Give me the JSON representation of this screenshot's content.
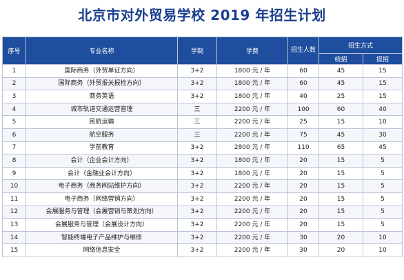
{
  "title": "北京市对外贸易学校 2019 年招生计划",
  "table": {
    "headers": {
      "no": "序号",
      "major": "专业名称",
      "system": "学制",
      "fee": "学费",
      "enroll": "招生人数",
      "method": "招生方式",
      "unified": "统招",
      "early": "提招"
    },
    "rows": [
      {
        "no": "1",
        "major": "国际商务（外贸单证方向）",
        "system": "3+2",
        "fee": "1800 元 / 年",
        "total": "60",
        "unified": "45",
        "early": "15"
      },
      {
        "no": "2",
        "major": "国际商务（外贸报关报检方向）",
        "system": "3+2",
        "fee": "1800 元 / 年",
        "total": "60",
        "unified": "45",
        "early": "15"
      },
      {
        "no": "3",
        "major": "商务英语",
        "system": "3+2",
        "fee": "1800 元 / 年",
        "total": "40",
        "unified": "25",
        "early": "15"
      },
      {
        "no": "4",
        "major": "城市轨道交通运营管理",
        "system": "三",
        "fee": "2200 元 / 年",
        "total": "100",
        "unified": "60",
        "early": "40"
      },
      {
        "no": "5",
        "major": "民航运输",
        "system": "三",
        "fee": "2200 元 / 年",
        "total": "25",
        "unified": "15",
        "early": "10"
      },
      {
        "no": "6",
        "major": "航空服务",
        "system": "三",
        "fee": "2200 元 / 年",
        "total": "75",
        "unified": "45",
        "early": "30"
      },
      {
        "no": "7",
        "major": "学前教育",
        "system": "3+2",
        "fee": "2800 元 / 年",
        "total": "110",
        "unified": "65",
        "early": "45"
      },
      {
        "no": "8",
        "major": "会计（企业会计方向）",
        "system": "3+2",
        "fee": "1800 元 / 年",
        "total": "20",
        "unified": "15",
        "early": "5"
      },
      {
        "no": "9",
        "major": "会计（金融业会计方向）",
        "system": "3+2",
        "fee": "1800 元 / 年",
        "total": "20",
        "unified": "15",
        "early": "5"
      },
      {
        "no": "10",
        "major": "电子商务（商务网站维护方向）",
        "system": "3+2",
        "fee": "2200 元 / 年",
        "total": "20",
        "unified": "15",
        "early": "5"
      },
      {
        "no": "11",
        "major": "电子商务（网络营销方向）",
        "system": "3+2",
        "fee": "2200 元 / 年",
        "total": "20",
        "unified": "15",
        "early": "5"
      },
      {
        "no": "12",
        "major": "会展服务与管理（会展营销与策划方向）",
        "system": "3+2",
        "fee": "2200 元 / 年",
        "total": "20",
        "unified": "15",
        "early": "5"
      },
      {
        "no": "13",
        "major": "会展服务与管理（会展设计方向）",
        "system": "3+2",
        "fee": "2200 元 / 年",
        "total": "20",
        "unified": "15",
        "early": "5"
      },
      {
        "no": "14",
        "major": "智能终端电子产品维护与维修",
        "system": "3+2",
        "fee": "2200 元 / 年",
        "total": "30",
        "unified": "20",
        "early": "10"
      },
      {
        "no": "15",
        "major": "网络信息安全",
        "system": "3+2",
        "fee": "2200 元 / 年",
        "total": "30",
        "unified": "20",
        "early": "10"
      }
    ]
  },
  "colors": {
    "title": "#1b3f8f",
    "header_bg": "#1f4e9e",
    "header_text": "#ffffff",
    "border": "#b9c3d6"
  }
}
